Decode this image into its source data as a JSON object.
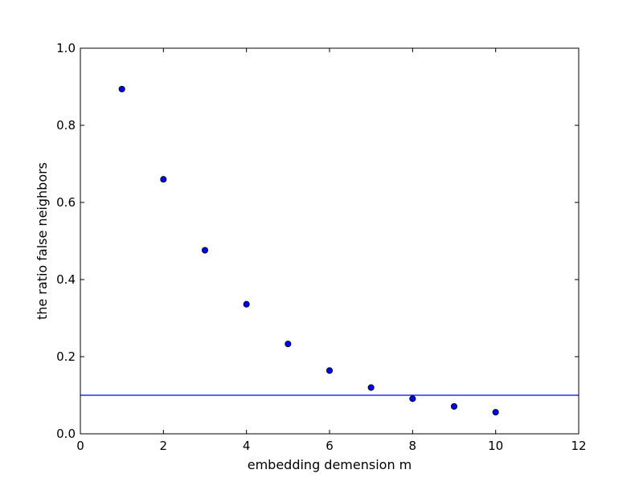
{
  "chart_data": {
    "type": "scatter",
    "title": "",
    "xlabel": "embedding demension m",
    "ylabel": "the ratio false neighbors",
    "xlim": [
      0,
      12
    ],
    "ylim": [
      0.0,
      1.0
    ],
    "xticks": [
      0,
      2,
      4,
      6,
      8,
      10,
      12
    ],
    "xtick_labels": [
      "0",
      "2",
      "4",
      "6",
      "8",
      "10",
      "12"
    ],
    "yticks": [
      0.0,
      0.2,
      0.4,
      0.6,
      0.8,
      1.0
    ],
    "ytick_labels": [
      "0.0",
      "0.2",
      "0.4",
      "0.6",
      "0.8",
      "1.0"
    ],
    "grid": false,
    "series": [
      {
        "x": [
          1,
          2,
          3,
          4,
          5,
          6,
          7,
          8,
          9,
          10
        ],
        "y": [
          0.894,
          0.66,
          0.476,
          0.336,
          0.233,
          0.164,
          0.12,
          0.091,
          0.071,
          0.056
        ],
        "color": "#0000ff",
        "edge_color": "#000000"
      }
    ],
    "hline": {
      "y": 0.1,
      "color": "#0000ff"
    }
  }
}
